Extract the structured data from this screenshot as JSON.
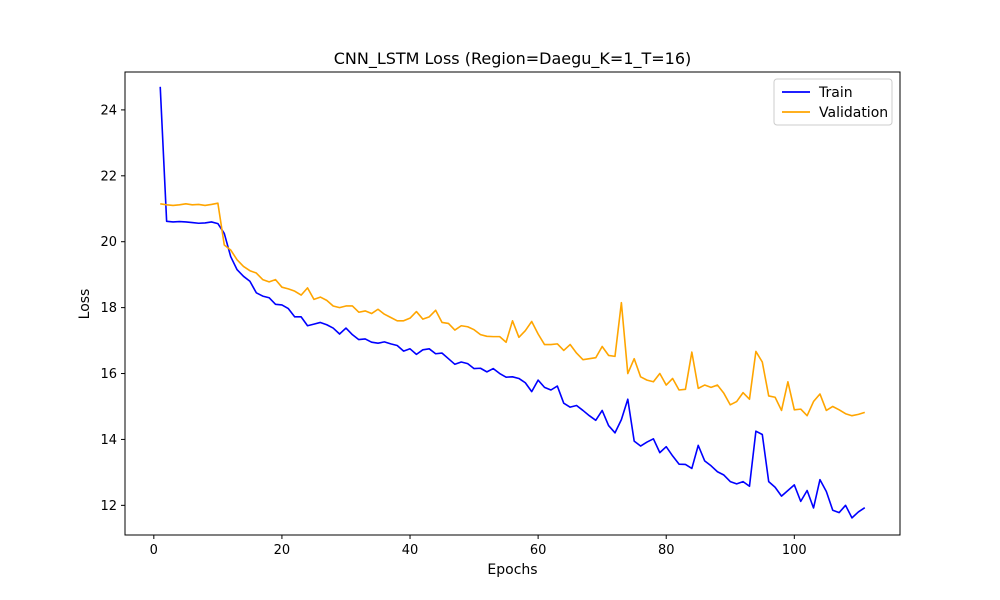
{
  "chart_data": {
    "type": "line",
    "title": "CNN_LSTM Loss (Region=Daegu_K=1_T=16)",
    "xlabel": "Epochs",
    "ylabel": "Loss",
    "xlim": [
      -4.5,
      116.5
    ],
    "ylim": [
      11.1,
      25.15
    ],
    "xticks": [
      0,
      20,
      40,
      60,
      80,
      100
    ],
    "yticks": [
      12,
      14,
      16,
      18,
      20,
      22,
      24
    ],
    "grid": false,
    "legend_position": "upper-right",
    "series": [
      {
        "name": "Train",
        "color": "#0000ff",
        "x": [
          1,
          2,
          3,
          4,
          5,
          6,
          7,
          8,
          9,
          10,
          11,
          12,
          13,
          14,
          15,
          16,
          17,
          18,
          19,
          20,
          21,
          22,
          23,
          24,
          25,
          26,
          27,
          28,
          29,
          30,
          31,
          32,
          33,
          34,
          35,
          36,
          37,
          38,
          39,
          40,
          41,
          42,
          43,
          44,
          45,
          46,
          47,
          48,
          49,
          50,
          51,
          52,
          53,
          54,
          55,
          56,
          57,
          58,
          59,
          60,
          61,
          62,
          63,
          64,
          65,
          66,
          67,
          68,
          69,
          70,
          71,
          72,
          73,
          74,
          75,
          76,
          77,
          78,
          79,
          80,
          81,
          82,
          83,
          84,
          85,
          86,
          87,
          88,
          89,
          90,
          91,
          92,
          93,
          94,
          95,
          96,
          97,
          98,
          99,
          100,
          101,
          102,
          103,
          104,
          105,
          106,
          107,
          108,
          109,
          110,
          111
        ],
        "values": [
          24.7,
          20.62,
          20.6,
          20.61,
          20.6,
          20.58,
          20.56,
          20.57,
          20.6,
          20.55,
          20.25,
          19.55,
          19.15,
          18.95,
          18.8,
          18.45,
          18.35,
          18.3,
          18.1,
          18.08,
          17.97,
          17.72,
          17.72,
          17.45,
          17.5,
          17.55,
          17.48,
          17.38,
          17.2,
          17.38,
          17.18,
          17.03,
          17.05,
          16.95,
          16.92,
          16.96,
          16.9,
          16.85,
          16.68,
          16.75,
          16.58,
          16.72,
          16.75,
          16.6,
          16.62,
          16.45,
          16.28,
          16.35,
          16.3,
          16.15,
          16.16,
          16.05,
          16.15,
          16.0,
          15.89,
          15.9,
          15.85,
          15.72,
          15.45,
          15.8,
          15.58,
          15.5,
          15.62,
          15.1,
          14.98,
          15.03,
          14.88,
          14.72,
          14.58,
          14.88,
          14.42,
          14.2,
          14.6,
          15.22,
          13.95,
          13.8,
          13.92,
          14.02,
          13.6,
          13.78,
          13.5,
          13.25,
          13.24,
          13.12,
          13.82,
          13.35,
          13.2,
          13.02,
          12.92,
          12.72,
          12.65,
          12.72,
          12.58,
          14.25,
          14.15,
          12.72,
          12.55,
          12.28,
          12.45,
          12.62,
          12.12,
          12.45,
          11.92,
          12.78,
          12.42,
          11.85,
          11.78,
          12.0,
          11.62,
          11.8,
          11.93
        ]
      },
      {
        "name": "Validation",
        "color": "#ffa500",
        "x": [
          1,
          2,
          3,
          4,
          5,
          6,
          7,
          8,
          9,
          10,
          11,
          12,
          13,
          14,
          15,
          16,
          17,
          18,
          19,
          20,
          21,
          22,
          23,
          24,
          25,
          26,
          27,
          28,
          29,
          30,
          31,
          32,
          33,
          34,
          35,
          36,
          37,
          38,
          39,
          40,
          41,
          42,
          43,
          44,
          45,
          46,
          47,
          48,
          49,
          50,
          51,
          52,
          53,
          54,
          55,
          56,
          57,
          58,
          59,
          60,
          61,
          62,
          63,
          64,
          65,
          66,
          67,
          68,
          69,
          70,
          71,
          72,
          73,
          74,
          75,
          76,
          77,
          78,
          79,
          80,
          81,
          82,
          83,
          84,
          85,
          86,
          87,
          88,
          89,
          90,
          91,
          92,
          93,
          94,
          95,
          96,
          97,
          98,
          99,
          100,
          101,
          102,
          103,
          104,
          105,
          106,
          107,
          108,
          109,
          110,
          111
        ],
        "values": [
          21.15,
          21.12,
          21.1,
          21.12,
          21.15,
          21.12,
          21.13,
          21.1,
          21.13,
          21.17,
          19.9,
          19.75,
          19.45,
          19.25,
          19.12,
          19.05,
          18.85,
          18.78,
          18.85,
          18.62,
          18.57,
          18.5,
          18.38,
          18.6,
          18.25,
          18.32,
          18.22,
          18.05,
          18.0,
          18.05,
          18.05,
          17.86,
          17.9,
          17.82,
          17.95,
          17.8,
          17.7,
          17.6,
          17.6,
          17.68,
          17.88,
          17.65,
          17.72,
          17.92,
          17.55,
          17.52,
          17.32,
          17.45,
          17.42,
          17.33,
          17.18,
          17.13,
          17.12,
          17.12,
          16.95,
          17.6,
          17.1,
          17.3,
          17.58,
          17.2,
          16.88,
          16.88,
          16.9,
          16.7,
          16.88,
          16.62,
          16.42,
          16.45,
          16.48,
          16.82,
          16.55,
          16.52,
          18.15,
          16.0,
          16.45,
          15.9,
          15.8,
          15.75,
          16.0,
          15.65,
          15.85,
          15.5,
          15.52,
          16.65,
          15.55,
          15.65,
          15.58,
          15.65,
          15.4,
          15.05,
          15.15,
          15.42,
          15.22,
          16.67,
          16.35,
          15.32,
          15.28,
          14.88,
          15.75,
          14.9,
          14.92,
          14.72,
          15.15,
          15.38,
          14.88,
          15.0,
          14.9,
          14.78,
          14.72,
          14.76,
          14.82
        ]
      }
    ]
  }
}
